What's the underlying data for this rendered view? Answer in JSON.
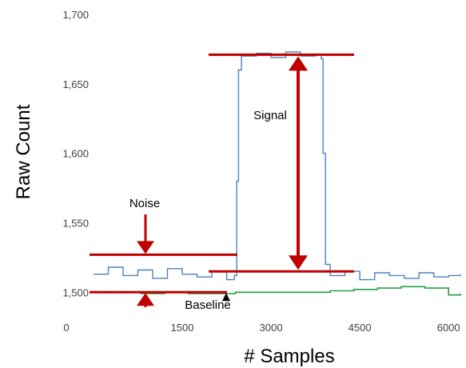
{
  "chart_data": {
    "type": "line",
    "title": "",
    "xlabel": "# Samples",
    "ylabel": "Raw Count",
    "xlim": [
      0,
      6200
    ],
    "ylim": [
      1480,
      1700
    ],
    "x_ticks": [
      {
        "value": 0,
        "label": "0"
      },
      {
        "value": 1500,
        "label": "1500"
      },
      {
        "value": 3000,
        "label": "3000"
      },
      {
        "value": 4500,
        "label": "4500"
      },
      {
        "value": 6000,
        "label": "6000"
      }
    ],
    "y_ticks": [
      {
        "value": 1500,
        "label": "1,500"
      },
      {
        "value": 1550,
        "label": "1,550"
      },
      {
        "value": 1600,
        "label": "1,600"
      },
      {
        "value": 1650,
        "label": "1,650"
      },
      {
        "value": 1700,
        "label": "1,700"
      }
    ],
    "grid": false,
    "legend": "none",
    "series": [
      {
        "color": "#4f81bd",
        "x": [
          0,
          250,
          500,
          750,
          1000,
          1250,
          1500,
          1750,
          2000,
          2250,
          2380,
          2420,
          2450,
          2500,
          2750,
          3000,
          3250,
          3500,
          3750,
          3850,
          3880,
          3920,
          4000,
          4250,
          4500,
          4750,
          5000,
          5250,
          5500,
          5750,
          6000,
          6200
        ],
        "y": [
          1513,
          1518,
          1512,
          1516,
          1510,
          1517,
          1513,
          1511,
          1515,
          1509,
          1512,
          1580,
          1660,
          1670,
          1672,
          1669,
          1673,
          1670,
          1671,
          1668,
          1600,
          1520,
          1512,
          1515,
          1509,
          1514,
          1512,
          1510,
          1514,
          1511,
          1512,
          1513
        ]
      },
      {
        "color": "#22a043",
        "x": [
          0,
          400,
          800,
          1200,
          1600,
          2000,
          2400,
          2800,
          3200,
          3600,
          4000,
          4400,
          4800,
          5200,
          5600,
          6000,
          6200
        ],
        "y": [
          1500,
          1500,
          1499,
          1500,
          1499,
          1499,
          1500,
          1500,
          1500,
          1500,
          1501,
          1502,
          1503,
          1504,
          1503,
          1498,
          1499
        ]
      }
    ],
    "annotations": {
      "noise_label": "Noise",
      "baseline_label": "Baseline",
      "signal_label": "Signal",
      "noise_band": [
        1500,
        1527
      ],
      "baseline_level": 1500,
      "signal_top": 1671,
      "signal_bottom": 1515
    }
  },
  "colors": {
    "annotation_red": "#c00000",
    "axis_text": "#404040"
  }
}
